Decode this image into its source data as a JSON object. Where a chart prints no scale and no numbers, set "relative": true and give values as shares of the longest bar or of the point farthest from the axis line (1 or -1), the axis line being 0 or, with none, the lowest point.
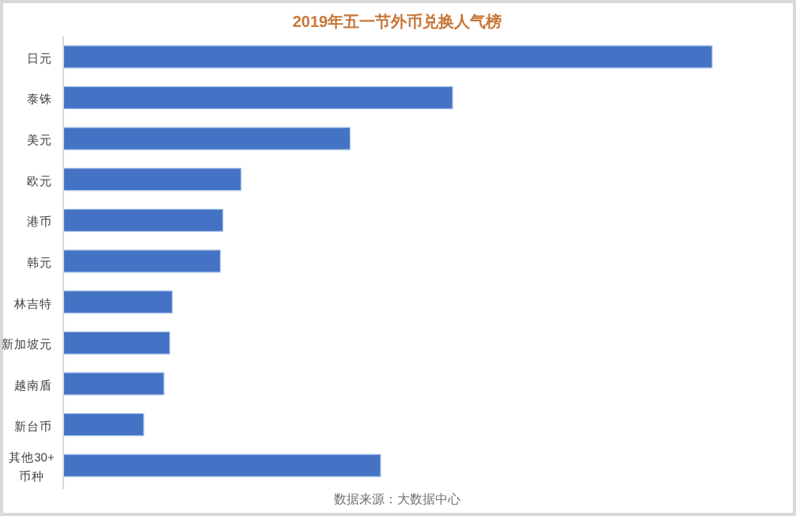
{
  "chart_data": {
    "type": "bar",
    "orientation": "horizontal",
    "relative": true,
    "title": "2019年五一节外币兑换人气榜",
    "categories": [
      "日元",
      "泰铢",
      "美元",
      "欧元",
      "港币",
      "韩元",
      "林吉特",
      "新加坡元",
      "越南盾",
      "新台币",
      "其他30+币种"
    ],
    "values": [
      1,
      0.6,
      0.442,
      0.274,
      0.246,
      0.242,
      0.168,
      0.164,
      0.155,
      0.124,
      0.489
    ],
    "color": "#4472c4",
    "annotations": [
      "数据来源：大数据中心"
    ]
  }
}
